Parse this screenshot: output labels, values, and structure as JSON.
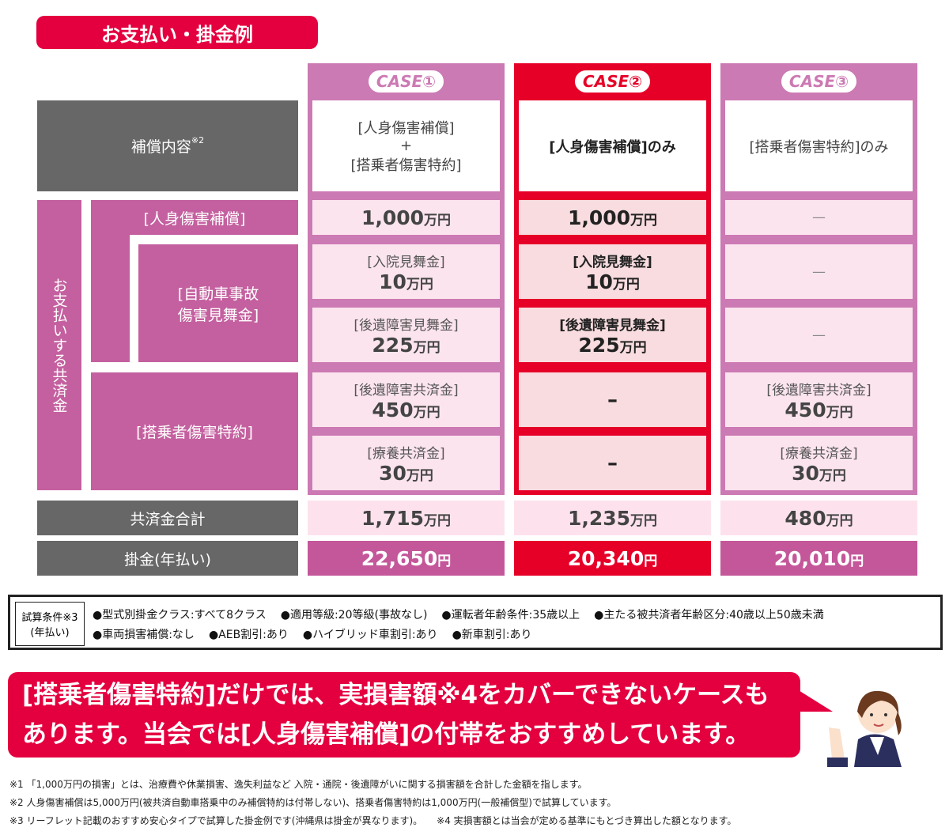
{
  "title": "お支払い・掛金例",
  "cases": [
    {
      "label": "CASE①",
      "coverage": [
        "[人身傷害補償]",
        "+",
        "[搭乗者傷害特約]"
      ],
      "jinshin": "1,000",
      "nyuin_label": "[入院見舞金]",
      "nyuin": "10",
      "kouisho_label": "[後遺障害見舞金]",
      "kouisho": "225",
      "kouisho_kyosai_label": "[後遺障害共済金]",
      "kouisho_kyosai": "450",
      "ryoyo_label": "[療養共済金]",
      "ryoyo": "30",
      "total": "1,715",
      "premium": "22,650"
    },
    {
      "label": "CASE②",
      "coverage": [
        "[人身傷害補償]のみ"
      ],
      "jinshin": "1,000",
      "nyuin_label": "[入院見舞金]",
      "nyuin": "10",
      "kouisho_label": "[後遺障害見舞金]",
      "kouisho": "225",
      "kouisho_kyosai": "–",
      "ryoyo": "–",
      "total": "1,235",
      "premium": "20,340"
    },
    {
      "label": "CASE③",
      "coverage": [
        "[搭乗者傷害特約]のみ"
      ],
      "jinshin": "—",
      "nyuin": "—",
      "kouisho": "—",
      "kouisho_kyosai_label": "[後遺障害共済金]",
      "kouisho_kyosai": "450",
      "ryoyo_label": "[療養共済金]",
      "ryoyo": "30",
      "total": "480",
      "premium": "20,010"
    }
  ],
  "units": {
    "man_yen": "万円",
    "yen": "円"
  },
  "rows": {
    "coverage": "補償内容",
    "coverage_note": "※2",
    "payout": "お支払いする共済金",
    "jinshin": "[人身傷害補償]",
    "jidosha": [
      "[自動車事故",
      "傷害見舞金]"
    ],
    "tojosha": "[搭乗者傷害特約]",
    "total": "共済金合計",
    "premium": "掛金(年払い)"
  },
  "conditions": {
    "label": [
      "試算条件※3",
      "(年払い)"
    ],
    "line1": [
      "●型式別掛金クラス:すべて8クラス",
      "●適用等級:20等級(事故なし)",
      "●運転者年齢条件:35歳以上",
      "●主たる被共済者年齢区分:40歳以上50歳未満"
    ],
    "line2": [
      "●車両損害補償:なし",
      "●AEB割引:あり",
      "●ハイブリッド車割引:あり",
      "●新車割引:あり"
    ]
  },
  "callout": [
    "[搭乗者傷害特約]だけでは、実損害額※4をカバーできないケースも",
    "あります。当会では[人身傷害補償]の付帯をおすすめしています。"
  ],
  "notes": [
    "※1 「1,000万円の損害」とは、治療費や休業損害、逸失利益など 入院・通院・後遺障がいに関する損害額を合計した金額を指します。",
    "※2 人身傷害補償は5,000万円(被共済自動車搭乗中のみ補償特約は付帯しない)、搭乗者傷害特約は1,000万円(一般補償型)で試算しています。",
    "※3 リーフレット記載のおすすめ安心タイプで試算した掛金例です(沖縄県は掛金が異なります)。　　※4 実損害額とは当会が定める基準にもとづき算出した額となります。"
  ],
  "colors": {
    "red": "#e60028",
    "pink": "#c4609f",
    "gray": "#676767"
  }
}
